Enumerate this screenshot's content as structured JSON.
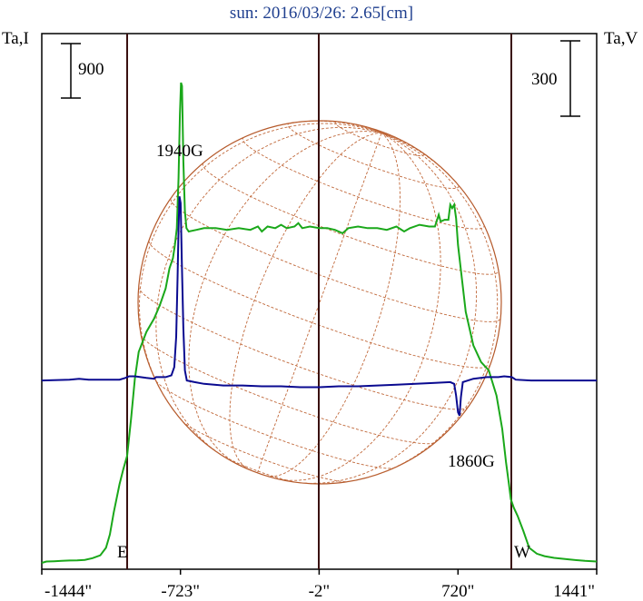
{
  "chart_data": {
    "type": "line",
    "title": "sun: 2016/03/26: 2.65[cm]",
    "ylabel_left": "Ta,I",
    "ylabel_right": "Ta,V",
    "scale_left": "900",
    "scale_right": "300",
    "xlim": [
      -1444,
      1441
    ],
    "x_ticks": [
      "-1444\"",
      "-723\"",
      "-2\"",
      "720\"",
      "1441\""
    ],
    "x_tick_values": [
      -1444,
      -723,
      -2,
      720,
      1441
    ],
    "limb_lines": [
      -1000,
      -2,
      996
    ],
    "limb_labels": {
      "east": "E",
      "west": "W"
    },
    "annotations": [
      {
        "text": "1940G",
        "x": -723
      },
      {
        "text": "1860G",
        "x": 730
      }
    ],
    "series": [
      {
        "color": "#1aa81a",
        "points": [
          [
            -1444,
            0
          ],
          [
            -1420,
            8
          ],
          [
            -1380,
            10
          ],
          [
            -1340,
            12
          ],
          [
            -1300,
            14
          ],
          [
            -1260,
            15
          ],
          [
            -1220,
            18
          ],
          [
            -1180,
            28
          ],
          [
            -1140,
            45
          ],
          [
            -1110,
            90
          ],
          [
            -1090,
            170
          ],
          [
            -1070,
            300
          ],
          [
            -1040,
            470
          ],
          [
            -1020,
            560
          ],
          [
            -1000,
            640
          ],
          [
            -980,
            860
          ],
          [
            -960,
            1100
          ],
          [
            -940,
            1260
          ],
          [
            -900,
            1380
          ],
          [
            -860,
            1460
          ],
          [
            -830,
            1540
          ],
          [
            -800,
            1640
          ],
          [
            -780,
            1760
          ],
          [
            -762,
            1820
          ],
          [
            -752,
            1900
          ],
          [
            -742,
            2000
          ],
          [
            -733,
            2300
          ],
          [
            -726,
            2680
          ],
          [
            -720,
            2870
          ],
          [
            -715,
            2850
          ],
          [
            -708,
            2400
          ],
          [
            -700,
            2100
          ],
          [
            -692,
            2000
          ],
          [
            -680,
            1980
          ],
          [
            -640,
            1990
          ],
          [
            -600,
            2000
          ],
          [
            -540,
            2000
          ],
          [
            -480,
            1990
          ],
          [
            -420,
            2000
          ],
          [
            -360,
            1990
          ],
          [
            -320,
            2010
          ],
          [
            -300,
            1980
          ],
          [
            -270,
            2010
          ],
          [
            -230,
            2000
          ],
          [
            -200,
            2020
          ],
          [
            -170,
            2000
          ],
          [
            -130,
            2010
          ],
          [
            -110,
            2030
          ],
          [
            -90,
            2000
          ],
          [
            -50,
            2010
          ],
          [
            0,
            2000
          ],
          [
            40,
            2000
          ],
          [
            80,
            1990
          ],
          [
            120,
            1970
          ],
          [
            150,
            2000
          ],
          [
            200,
            2010
          ],
          [
            250,
            2000
          ],
          [
            300,
            2000
          ],
          [
            350,
            1990
          ],
          [
            400,
            2010
          ],
          [
            440,
            1980
          ],
          [
            470,
            2000
          ],
          [
            520,
            2020
          ],
          [
            570,
            2010
          ],
          [
            600,
            2010
          ],
          [
            620,
            2080
          ],
          [
            630,
            2040
          ],
          [
            650,
            2050
          ],
          [
            670,
            2050
          ],
          [
            680,
            2140
          ],
          [
            690,
            2120
          ],
          [
            700,
            2140
          ],
          [
            710,
            2060
          ],
          [
            720,
            1900
          ],
          [
            760,
            1500
          ],
          [
            800,
            1300
          ],
          [
            840,
            1200
          ],
          [
            880,
            1150
          ],
          [
            920,
            1000
          ],
          [
            950,
            800
          ],
          [
            970,
            600
          ],
          [
            985,
            470
          ],
          [
            995,
            380
          ],
          [
            1010,
            330
          ],
          [
            1030,
            280
          ],
          [
            1060,
            190
          ],
          [
            1090,
            90
          ],
          [
            1130,
            55
          ],
          [
            1170,
            40
          ],
          [
            1220,
            30
          ],
          [
            1300,
            20
          ],
          [
            1380,
            12
          ],
          [
            1441,
            8
          ]
        ]
      },
      {
        "color": "#0a0a90",
        "points": [
          [
            -1444,
            1090
          ],
          [
            -1300,
            1095
          ],
          [
            -1250,
            1100
          ],
          [
            -1200,
            1095
          ],
          [
            -1100,
            1095
          ],
          [
            -1040,
            1095
          ],
          [
            -1010,
            1105
          ],
          [
            -990,
            1115
          ],
          [
            -960,
            1115
          ],
          [
            -900,
            1105
          ],
          [
            -860,
            1100
          ],
          [
            -850,
            1110
          ],
          [
            -800,
            1110
          ],
          [
            -770,
            1120
          ],
          [
            -755,
            1170
          ],
          [
            -745,
            1350
          ],
          [
            -738,
            1700
          ],
          [
            -733,
            2000
          ],
          [
            -728,
            2190
          ],
          [
            -722,
            2150
          ],
          [
            -716,
            1800
          ],
          [
            -708,
            1400
          ],
          [
            -700,
            1150
          ],
          [
            -690,
            1090
          ],
          [
            -650,
            1080
          ],
          [
            -600,
            1070
          ],
          [
            -500,
            1060
          ],
          [
            -400,
            1060
          ],
          [
            -300,
            1055
          ],
          [
            -200,
            1055
          ],
          [
            -100,
            1050
          ],
          [
            0,
            1050
          ],
          [
            100,
            1055
          ],
          [
            200,
            1055
          ],
          [
            300,
            1060
          ],
          [
            400,
            1065
          ],
          [
            500,
            1070
          ],
          [
            600,
            1075
          ],
          [
            680,
            1080
          ],
          [
            700,
            1070
          ],
          [
            710,
            1000
          ],
          [
            720,
            900
          ],
          [
            728,
            880
          ],
          [
            735,
            990
          ],
          [
            745,
            1080
          ],
          [
            800,
            1100
          ],
          [
            870,
            1110
          ],
          [
            930,
            1110
          ],
          [
            960,
            1115
          ],
          [
            1000,
            1110
          ],
          [
            1020,
            1095
          ],
          [
            1100,
            1090
          ],
          [
            1200,
            1090
          ],
          [
            1300,
            1090
          ],
          [
            1441,
            1090
          ]
        ]
      }
    ],
    "ylim": [
      0,
      3000
    ],
    "grid": false
  }
}
